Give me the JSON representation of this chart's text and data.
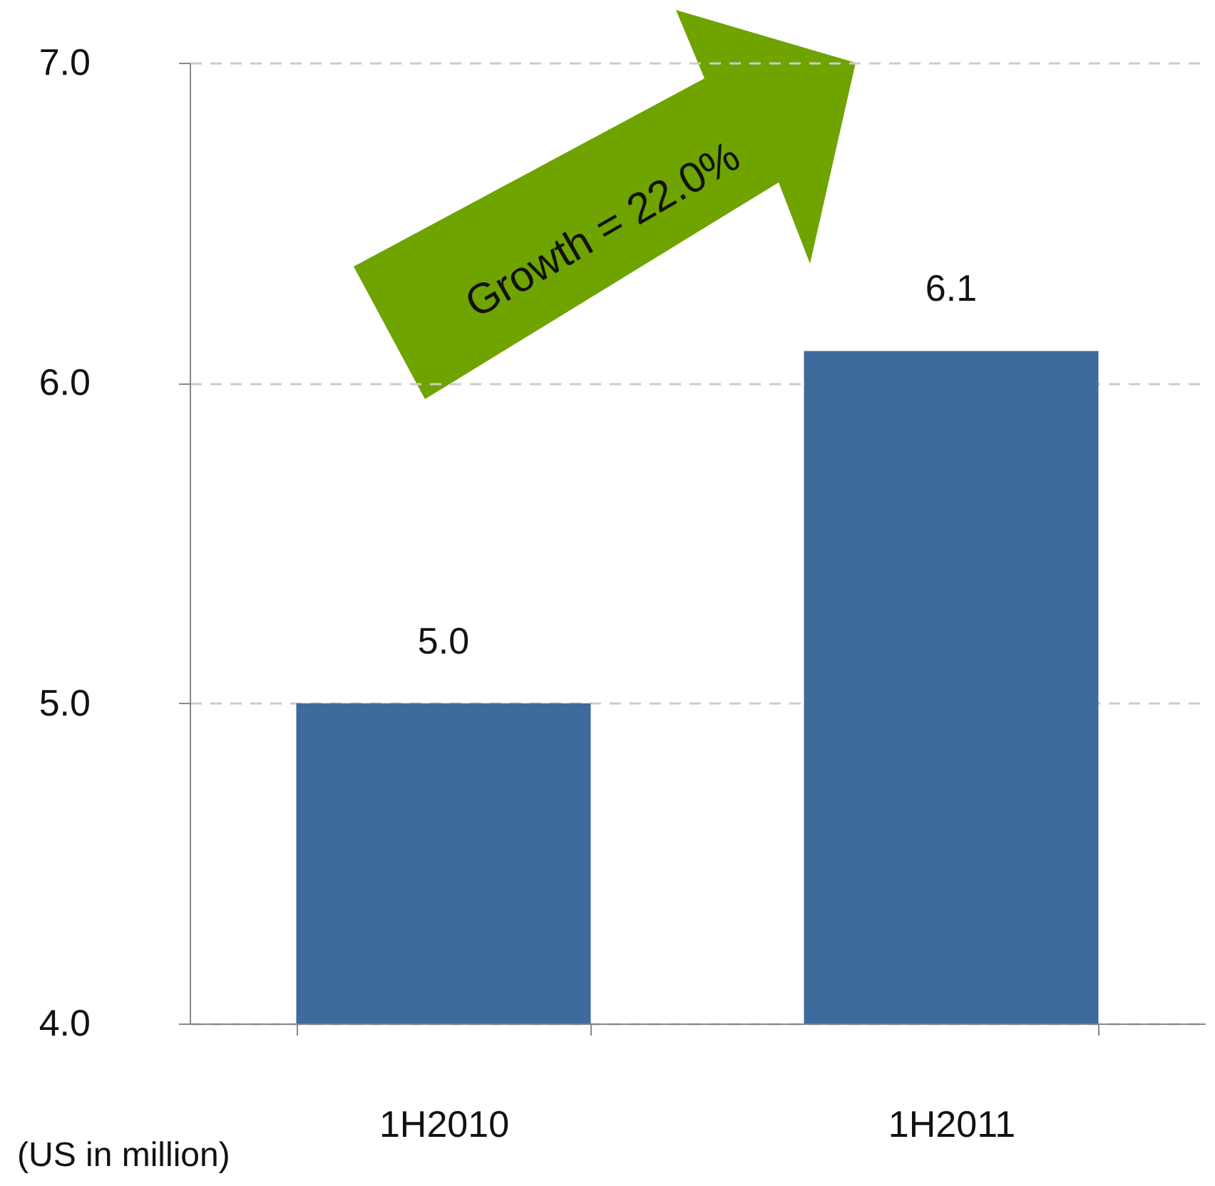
{
  "chart_data": {
    "type": "bar",
    "categories": [
      "1H2010",
      "1H2011"
    ],
    "values": [
      5.0,
      6.1
    ],
    "color": "#3f6a9c",
    "ylim": [
      4,
      7
    ],
    "yticks": [
      {
        "value": 4,
        "label": "4.0"
      },
      {
        "value": 5,
        "label": "5.0"
      },
      {
        "value": 6,
        "label": "6.0"
      },
      {
        "value": 7,
        "label": "7.0"
      }
    ],
    "grid": "y",
    "value_labels": [
      "5.0",
      "6.1"
    ],
    "annotations": [
      "Growth = 22.0%",
      "(US in million)"
    ]
  }
}
